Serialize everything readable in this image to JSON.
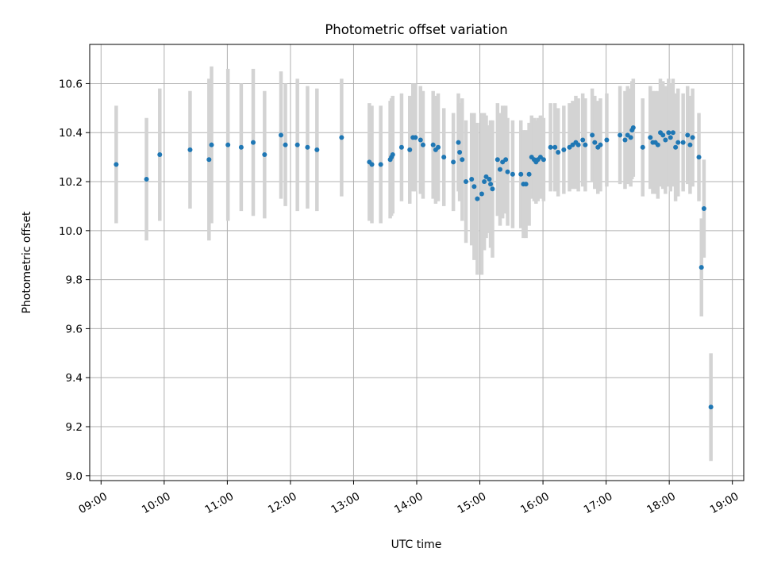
{
  "chart_data": {
    "type": "scatter",
    "title": "Photometric offset variation",
    "xlabel": "UTC time",
    "ylabel": "Photometric offset",
    "grid": true,
    "x_unit": "UTC hours",
    "xlim": [
      8.82,
      19.18
    ],
    "ylim": [
      8.98,
      10.76
    ],
    "x_ticks": [
      {
        "value": 9,
        "label": "09:00"
      },
      {
        "value": 10,
        "label": "10:00"
      },
      {
        "value": 11,
        "label": "11:00"
      },
      {
        "value": 12,
        "label": "12:00"
      },
      {
        "value": 13,
        "label": "13:00"
      },
      {
        "value": 14,
        "label": "14:00"
      },
      {
        "value": 15,
        "label": "15:00"
      },
      {
        "value": 16,
        "label": "16:00"
      },
      {
        "value": 17,
        "label": "17:00"
      },
      {
        "value": 18,
        "label": "18:00"
      },
      {
        "value": 19,
        "label": "19:00"
      }
    ],
    "y_ticks": [
      {
        "value": 9.0,
        "label": "9.0"
      },
      {
        "value": 9.2,
        "label": "9.2"
      },
      {
        "value": 9.4,
        "label": "9.4"
      },
      {
        "value": 9.6,
        "label": "9.6"
      },
      {
        "value": 9.8,
        "label": "9.8"
      },
      {
        "value": 10.0,
        "label": "10.0"
      },
      {
        "value": 10.2,
        "label": "10.2"
      },
      {
        "value": 10.4,
        "label": "10.4"
      },
      {
        "value": 10.6,
        "label": "10.6"
      }
    ],
    "colors": {
      "point": "#1f77b4",
      "errorbar": "#d3d3d3",
      "grid": "#b0b0b0"
    },
    "points": [
      [
        9.24,
        10.27,
        0.24
      ],
      [
        9.72,
        10.21,
        0.25
      ],
      [
        9.93,
        10.31,
        0.27
      ],
      [
        10.41,
        10.33,
        0.24
      ],
      [
        10.71,
        10.29,
        0.33
      ],
      [
        10.75,
        10.35,
        0.32
      ],
      [
        11.01,
        10.35,
        0.31
      ],
      [
        11.22,
        10.34,
        0.26
      ],
      [
        11.41,
        10.36,
        0.3
      ],
      [
        11.59,
        10.31,
        0.26
      ],
      [
        11.85,
        10.39,
        0.26
      ],
      [
        11.92,
        10.35,
        0.25
      ],
      [
        12.11,
        10.35,
        0.27
      ],
      [
        12.27,
        10.34,
        0.25
      ],
      [
        12.42,
        10.33,
        0.25
      ],
      [
        12.81,
        10.38,
        0.24
      ],
      [
        13.25,
        10.28,
        0.24
      ],
      [
        13.29,
        10.27,
        0.24
      ],
      [
        13.43,
        10.27,
        0.24
      ],
      [
        13.58,
        10.29,
        0.24
      ],
      [
        13.6,
        10.3,
        0.24
      ],
      [
        13.62,
        10.31,
        0.24
      ],
      [
        13.76,
        10.34,
        0.22
      ],
      [
        13.89,
        10.33,
        0.22
      ],
      [
        13.94,
        10.38,
        0.22
      ],
      [
        13.98,
        10.38,
        0.22
      ],
      [
        14.06,
        10.37,
        0.22
      ],
      [
        14.1,
        10.35,
        0.22
      ],
      [
        14.26,
        10.35,
        0.22
      ],
      [
        14.3,
        10.33,
        0.22
      ],
      [
        14.34,
        10.34,
        0.22
      ],
      [
        14.43,
        10.3,
        0.2
      ],
      [
        14.58,
        10.28,
        0.2
      ],
      [
        14.66,
        10.36,
        0.2
      ],
      [
        14.68,
        10.32,
        0.2
      ],
      [
        14.72,
        10.29,
        0.25
      ],
      [
        14.78,
        10.2,
        0.25
      ],
      [
        14.87,
        10.21,
        0.27
      ],
      [
        14.91,
        10.18,
        0.3
      ],
      [
        14.96,
        10.13,
        0.31
      ],
      [
        15.03,
        10.15,
        0.33
      ],
      [
        15.07,
        10.2,
        0.28
      ],
      [
        15.1,
        10.22,
        0.25
      ],
      [
        15.15,
        10.21,
        0.22
      ],
      [
        15.17,
        10.19,
        0.26
      ],
      [
        15.2,
        10.17,
        0.28
      ],
      [
        15.28,
        10.29,
        0.23
      ],
      [
        15.32,
        10.25,
        0.23
      ],
      [
        15.36,
        10.28,
        0.23
      ],
      [
        15.41,
        10.29,
        0.22
      ],
      [
        15.44,
        10.24,
        0.22
      ],
      [
        15.52,
        10.23,
        0.22
      ],
      [
        15.65,
        10.23,
        0.22
      ],
      [
        15.69,
        10.19,
        0.22
      ],
      [
        15.73,
        10.19,
        0.22
      ],
      [
        15.78,
        10.23,
        0.21
      ],
      [
        15.82,
        10.3,
        0.17
      ],
      [
        15.86,
        10.29,
        0.17
      ],
      [
        15.89,
        10.28,
        0.17
      ],
      [
        15.92,
        10.29,
        0.17
      ],
      [
        15.96,
        10.3,
        0.17
      ],
      [
        16.01,
        10.29,
        0.17
      ],
      [
        16.12,
        10.34,
        0.18
      ],
      [
        16.19,
        10.34,
        0.18
      ],
      [
        16.24,
        10.32,
        0.18
      ],
      [
        16.33,
        10.33,
        0.18
      ],
      [
        16.42,
        10.34,
        0.18
      ],
      [
        16.47,
        10.35,
        0.18
      ],
      [
        16.52,
        10.36,
        0.19
      ],
      [
        16.56,
        10.35,
        0.19
      ],
      [
        16.63,
        10.37,
        0.19
      ],
      [
        16.67,
        10.35,
        0.19
      ],
      [
        16.78,
        10.39,
        0.19
      ],
      [
        16.82,
        10.36,
        0.19
      ],
      [
        16.87,
        10.34,
        0.19
      ],
      [
        16.91,
        10.35,
        0.19
      ],
      [
        17.01,
        10.37,
        0.19
      ],
      [
        17.22,
        10.39,
        0.2
      ],
      [
        17.3,
        10.37,
        0.2
      ],
      [
        17.34,
        10.39,
        0.2
      ],
      [
        17.39,
        10.38,
        0.2
      ],
      [
        17.41,
        10.41,
        0.2
      ],
      [
        17.43,
        10.42,
        0.2
      ],
      [
        17.58,
        10.34,
        0.2
      ],
      [
        17.7,
        10.38,
        0.21
      ],
      [
        17.74,
        10.36,
        0.21
      ],
      [
        17.78,
        10.36,
        0.21
      ],
      [
        17.82,
        10.35,
        0.22
      ],
      [
        17.86,
        10.4,
        0.22
      ],
      [
        17.9,
        10.39,
        0.22
      ],
      [
        17.94,
        10.37,
        0.22
      ],
      [
        17.99,
        10.4,
        0.22
      ],
      [
        18.02,
        10.38,
        0.22
      ],
      [
        18.06,
        10.4,
        0.22
      ],
      [
        18.1,
        10.34,
        0.22
      ],
      [
        18.14,
        10.36,
        0.22
      ],
      [
        18.22,
        10.36,
        0.2
      ],
      [
        18.29,
        10.39,
        0.2
      ],
      [
        18.33,
        10.35,
        0.2
      ],
      [
        18.37,
        10.38,
        0.2
      ],
      [
        18.47,
        10.3,
        0.18
      ],
      [
        18.51,
        9.85,
        0.2
      ],
      [
        18.55,
        10.09,
        0.2
      ],
      [
        18.66,
        9.28,
        0.22
      ]
    ]
  }
}
